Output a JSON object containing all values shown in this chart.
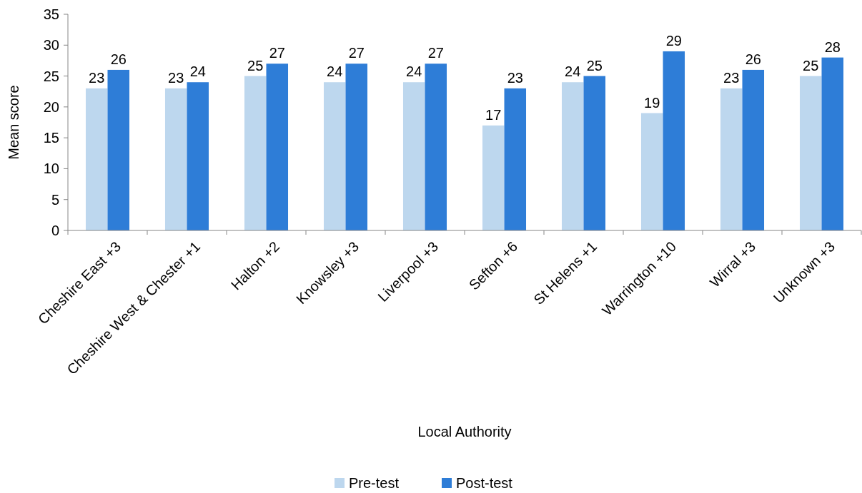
{
  "chart_data": {
    "type": "bar",
    "xlabel": "Local Authority",
    "ylabel": "Mean score",
    "categories": [
      "Cheshire East +3",
      "Cheshire West & Chester +1",
      "Halton +2",
      "Knowsley +3",
      "Liverpool +3",
      "Sefton +6",
      "St Helens +1",
      "Warrington +10",
      "Wirral +3",
      "Unknown +3"
    ],
    "series": [
      {
        "name": "Pre-test",
        "color": "#bdd7ee",
        "values": [
          23,
          23,
          25,
          24,
          24,
          17,
          24,
          19,
          23,
          25
        ]
      },
      {
        "name": "Post-test",
        "color": "#2e7dd7",
        "values": [
          26,
          24,
          27,
          27,
          27,
          23,
          25,
          29,
          26,
          28
        ]
      }
    ],
    "ylim": [
      0,
      35
    ],
    "yticks": [
      0,
      5,
      10,
      15,
      20,
      25,
      30,
      35
    ],
    "grid": false,
    "legend": "bottom",
    "data_labels": true
  }
}
